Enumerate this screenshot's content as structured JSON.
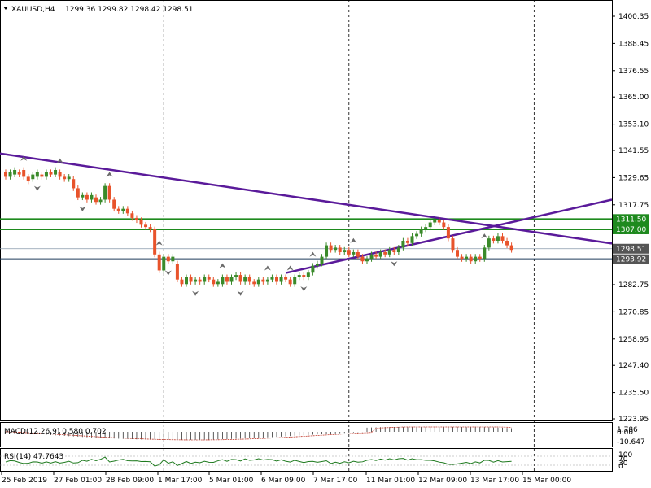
{
  "header": {
    "symbol": "XAUUSD,H4",
    "ohlc": "1299.36 1299.82 1298.42 1298.51"
  },
  "macd_label": "MACD(12,26,9) 0.580 0.702",
  "rsi_label": "RSI(14) 47.7643",
  "colors": {
    "bull": "#3a8a2a",
    "bear": "#e8532b",
    "trendline": "#5a1a9a",
    "level": "#1e8a1e",
    "grid_vline": "#000000",
    "fractal": "#6a6a6a"
  },
  "chart_data": {
    "type": "candlestick",
    "ylim": [
      1223.95,
      1406.0
    ],
    "y_ticks": [
      "1400.35",
      "1388.45",
      "1376.55",
      "1365.00",
      "1353.10",
      "1341.55",
      "1329.65",
      "1317.75",
      "1305.85",
      "1294.30",
      "1282.75",
      "1270.85",
      "1258.95",
      "1247.40",
      "1235.50",
      "1223.95"
    ],
    "x_ticks": [
      "25 Feb 2019",
      "27 Feb 01:00",
      "28 Feb 09:00",
      "1 Mar 17:00",
      "5 Mar 01:00",
      "6 Mar 09:00",
      "7 Mar 17:00",
      "11 Mar 01:00",
      "12 Mar 09:00",
      "13 Mar 17:00",
      "15 Mar 00:00"
    ],
    "price_labels": [
      {
        "text": "1311.50",
        "value": 1311.5,
        "color": "#1e8a1e"
      },
      {
        "text": "1307.00",
        "value": 1307.0,
        "color": "#1e8a1e"
      },
      {
        "text": "1298.51",
        "value": 1298.51,
        "color": "#555555"
      },
      {
        "text": "1293.92",
        "value": 1293.92,
        "color": "#555555"
      }
    ],
    "horizontal_levels": [
      1311.5,
      1307.0,
      1293.92
    ],
    "current_price": 1298.51,
    "trendlines": [
      {
        "name": "Descending resistance",
        "from": [
          0,
          1340.2
        ],
        "to": [
          127,
          1300.8
        ]
      },
      {
        "name": "Ascending support",
        "from": [
          62,
          1287.9
        ],
        "to": [
          127,
          1320.0
        ]
      }
    ],
    "vertical_lines_at_index": [
      35,
      76,
      117
    ],
    "candles": [
      {
        "o": 1332,
        "c": 1330
      },
      {
        "o": 1330,
        "c": 1332
      },
      {
        "o": 1331,
        "c": 1333
      },
      {
        "o": 1332,
        "c": 1331
      },
      {
        "o": 1333,
        "c": 1330
      },
      {
        "o": 1330,
        "c": 1328
      },
      {
        "o": 1329,
        "c": 1331
      },
      {
        "o": 1330,
        "c": 1332
      },
      {
        "o": 1331,
        "c": 1330
      },
      {
        "o": 1330,
        "c": 1332
      },
      {
        "o": 1332,
        "c": 1331
      },
      {
        "o": 1331,
        "c": 1333
      },
      {
        "o": 1332,
        "c": 1330
      },
      {
        "o": 1330,
        "c": 1329
      },
      {
        "o": 1329,
        "c": 1330
      },
      {
        "o": 1329,
        "c": 1325
      },
      {
        "o": 1325,
        "c": 1321
      },
      {
        "o": 1321,
        "c": 1322
      },
      {
        "o": 1322,
        "c": 1320
      },
      {
        "o": 1320,
        "c": 1322
      },
      {
        "o": 1321,
        "c": 1319
      },
      {
        "o": 1319,
        "c": 1320
      },
      {
        "o": 1320,
        "c": 1326
      },
      {
        "o": 1326,
        "c": 1320
      },
      {
        "o": 1320,
        "c": 1316
      },
      {
        "o": 1316,
        "c": 1315
      },
      {
        "o": 1315,
        "c": 1316
      },
      {
        "o": 1316,
        "c": 1314
      },
      {
        "o": 1314,
        "c": 1312
      },
      {
        "o": 1312,
        "c": 1311
      },
      {
        "o": 1311,
        "c": 1309
      },
      {
        "o": 1309,
        "c": 1308
      },
      {
        "o": 1308,
        "c": 1307
      },
      {
        "o": 1307,
        "c": 1296
      },
      {
        "o": 1296,
        "c": 1289
      },
      {
        "o": 1289,
        "c": 1295
      },
      {
        "o": 1295,
        "c": 1293
      },
      {
        "o": 1293,
        "c": 1295
      },
      {
        "o": 1292,
        "c": 1285
      },
      {
        "o": 1285,
        "c": 1283
      },
      {
        "o": 1283,
        "c": 1286
      },
      {
        "o": 1286,
        "c": 1284
      },
      {
        "o": 1284,
        "c": 1285
      },
      {
        "o": 1285,
        "c": 1284
      },
      {
        "o": 1284,
        "c": 1286
      },
      {
        "o": 1286,
        "c": 1285
      },
      {
        "o": 1285,
        "c": 1283
      },
      {
        "o": 1283,
        "c": 1284
      },
      {
        "o": 1283,
        "c": 1286
      },
      {
        "o": 1286,
        "c": 1284
      },
      {
        "o": 1284,
        "c": 1286
      },
      {
        "o": 1286,
        "c": 1287
      },
      {
        "o": 1287,
        "c": 1284
      },
      {
        "o": 1284,
        "c": 1286
      },
      {
        "o": 1286,
        "c": 1284
      },
      {
        "o": 1284,
        "c": 1283
      },
      {
        "o": 1283,
        "c": 1285
      },
      {
        "o": 1285,
        "c": 1284
      },
      {
        "o": 1284,
        "c": 1285
      },
      {
        "o": 1285,
        "c": 1286
      },
      {
        "o": 1286,
        "c": 1284
      },
      {
        "o": 1284,
        "c": 1286
      },
      {
        "o": 1286,
        "c": 1285
      },
      {
        "o": 1285,
        "c": 1283
      },
      {
        "o": 1283,
        "c": 1286
      },
      {
        "o": 1286,
        "c": 1287
      },
      {
        "o": 1287,
        "c": 1286
      },
      {
        "o": 1286,
        "c": 1288
      },
      {
        "o": 1288,
        "c": 1291
      },
      {
        "o": 1291,
        "c": 1292
      },
      {
        "o": 1292,
        "c": 1295
      },
      {
        "o": 1295,
        "c": 1300
      },
      {
        "o": 1300,
        "c": 1298
      },
      {
        "o": 1298,
        "c": 1299
      },
      {
        "o": 1299,
        "c": 1297
      },
      {
        "o": 1297,
        "c": 1298
      },
      {
        "o": 1298,
        "c": 1296
      },
      {
        "o": 1296,
        "c": 1297
      },
      {
        "o": 1297,
        "c": 1295
      },
      {
        "o": 1295,
        "c": 1293
      },
      {
        "o": 1293,
        "c": 1294
      },
      {
        "o": 1294,
        "c": 1296
      },
      {
        "o": 1296,
        "c": 1295
      },
      {
        "o": 1295,
        "c": 1297
      },
      {
        "o": 1297,
        "c": 1296
      },
      {
        "o": 1296,
        "c": 1298
      },
      {
        "o": 1298,
        "c": 1297
      },
      {
        "o": 1297,
        "c": 1299
      },
      {
        "o": 1299,
        "c": 1302
      },
      {
        "o": 1302,
        "c": 1301
      },
      {
        "o": 1301,
        "c": 1304
      },
      {
        "o": 1304,
        "c": 1305
      },
      {
        "o": 1305,
        "c": 1307
      },
      {
        "o": 1307,
        "c": 1308
      },
      {
        "o": 1308,
        "c": 1310
      },
      {
        "o": 1310,
        "c": 1311
      },
      {
        "o": 1311,
        "c": 1310
      },
      {
        "o": 1310,
        "c": 1308
      },
      {
        "o": 1308,
        "c": 1303
      },
      {
        "o": 1303,
        "c": 1298
      },
      {
        "o": 1298,
        "c": 1295
      },
      {
        "o": 1295,
        "c": 1294
      },
      {
        "o": 1294,
        "c": 1295
      },
      {
        "o": 1295,
        "c": 1293
      },
      {
        "o": 1293,
        "c": 1295
      },
      {
        "o": 1295,
        "c": 1294
      },
      {
        "o": 1294,
        "c": 1299
      },
      {
        "o": 1299,
        "c": 1303
      },
      {
        "o": 1303,
        "c": 1302
      },
      {
        "o": 1302,
        "c": 1304
      },
      {
        "o": 1304,
        "c": 1302
      },
      {
        "o": 1302,
        "c": 1300
      },
      {
        "o": 1300,
        "c": 1298
      }
    ]
  }
}
